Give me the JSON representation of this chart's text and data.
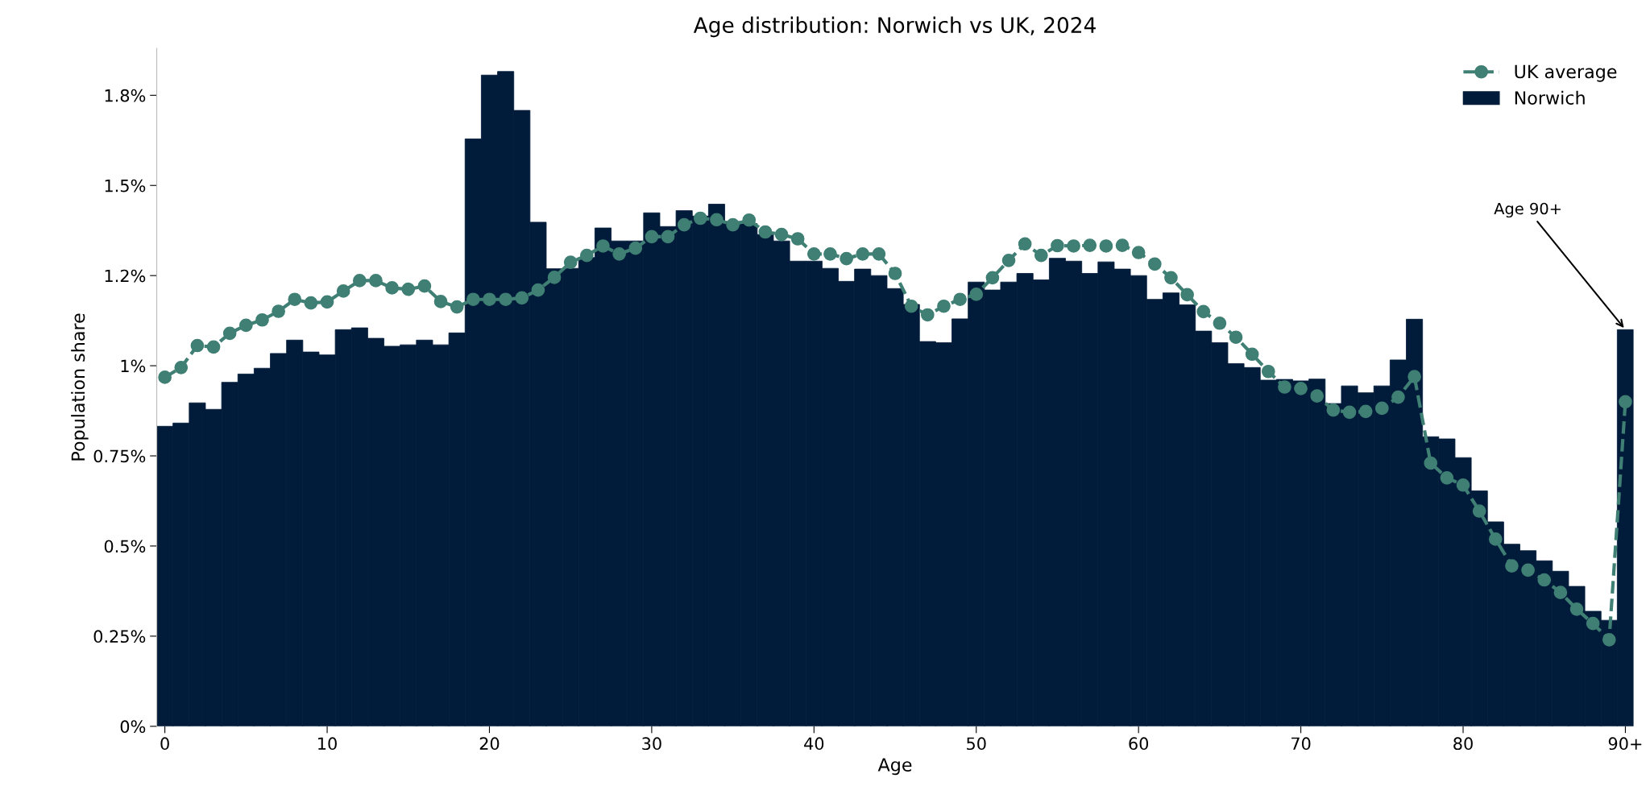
{
  "chart_data": {
    "type": "bar",
    "title": "Age distribution: Norwich vs UK, 2024",
    "xlabel": "Age",
    "ylabel": "Population share",
    "categories": [
      "0",
      null,
      null,
      null,
      null,
      null,
      null,
      null,
      null,
      null,
      "10",
      null,
      null,
      null,
      null,
      null,
      null,
      null,
      null,
      null,
      "20",
      null,
      null,
      null,
      null,
      null,
      null,
      null,
      null,
      null,
      "30",
      null,
      null,
      null,
      null,
      null,
      null,
      null,
      null,
      null,
      "40",
      null,
      null,
      null,
      null,
      null,
      null,
      null,
      null,
      null,
      "50",
      null,
      null,
      null,
      null,
      null,
      null,
      null,
      null,
      null,
      "60",
      null,
      null,
      null,
      null,
      null,
      null,
      null,
      null,
      null,
      "70",
      null,
      null,
      null,
      null,
      null,
      null,
      null,
      null,
      null,
      "80",
      null,
      null,
      null,
      null,
      null,
      null,
      null,
      null,
      null,
      "90+"
    ],
    "series": [
      {
        "name": "Norwich",
        "color": "#011c3a",
        "values": [
          0.832,
          0.841,
          0.897,
          0.879,
          0.954,
          0.977,
          0.993,
          1.034,
          1.071,
          1.038,
          1.03,
          1.1,
          1.105,
          1.076,
          1.054,
          1.058,
          1.071,
          1.058,
          1.091,
          1.629,
          1.806,
          1.816,
          1.708,
          1.398,
          1.269,
          1.27,
          1.3,
          1.382,
          1.346,
          1.346,
          1.424,
          1.386,
          1.43,
          1.415,
          1.448,
          1.4,
          1.394,
          1.364,
          1.346,
          1.29,
          1.29,
          1.27,
          1.234,
          1.268,
          1.25,
          1.214,
          1.17,
          1.067,
          1.064,
          1.13,
          1.232,
          1.21,
          1.232,
          1.256,
          1.238,
          1.298,
          1.29,
          1.256,
          1.288,
          1.268,
          1.25,
          1.184,
          1.202,
          1.169,
          1.096,
          1.064,
          1.006,
          0.995,
          0.96,
          0.962,
          0.958,
          0.963,
          0.895,
          0.944,
          0.925,
          0.944,
          1.016,
          1.129,
          0.803,
          0.797,
          0.745,
          0.653,
          0.567,
          0.505,
          0.487,
          0.459,
          0.43,
          0.388,
          0.319,
          0.294,
          1.1
        ]
      },
      {
        "name": "UK average",
        "type": "line",
        "color": "#3f7f74",
        "marker": "circle",
        "line_style": "dashed",
        "values": [
          0.968,
          0.995,
          1.056,
          1.052,
          1.09,
          1.112,
          1.127,
          1.151,
          1.184,
          1.174,
          1.177,
          1.207,
          1.236,
          1.236,
          1.216,
          1.212,
          1.221,
          1.178,
          1.163,
          1.184,
          1.184,
          1.184,
          1.188,
          1.21,
          1.245,
          1.287,
          1.306,
          1.332,
          1.31,
          1.326,
          1.358,
          1.358,
          1.391,
          1.409,
          1.405,
          1.391,
          1.404,
          1.371,
          1.364,
          1.352,
          1.31,
          1.31,
          1.297,
          1.31,
          1.31,
          1.256,
          1.165,
          1.141,
          1.165,
          1.184,
          1.198,
          1.244,
          1.292,
          1.338,
          1.306,
          1.333,
          1.332,
          1.334,
          1.332,
          1.334,
          1.314,
          1.282,
          1.244,
          1.197,
          1.15,
          1.118,
          1.079,
          1.032,
          0.984,
          0.941,
          0.937,
          0.916,
          0.877,
          0.871,
          0.873,
          0.882,
          0.913,
          0.97,
          0.73,
          0.689,
          0.669,
          0.597,
          0.519,
          0.445,
          0.433,
          0.406,
          0.371,
          0.325,
          0.285,
          0.24,
          0.9
        ]
      }
    ],
    "ylim": [
      0,
      1.88
    ],
    "yticks": [
      {
        "value": 0,
        "label": "0%"
      },
      {
        "value": 0.25,
        "label": "0.25%"
      },
      {
        "value": 0.5,
        "label": "0.5%"
      },
      {
        "value": 0.75,
        "label": "0.75%"
      },
      {
        "value": 1,
        "label": "1%"
      },
      {
        "value": 1.25,
        "label": "1.2%"
      },
      {
        "value": 1.5,
        "label": "1.5%"
      },
      {
        "value": 1.75,
        "label": "1.8%"
      }
    ],
    "annotations": [
      {
        "text": "Age 90+",
        "x": "90+",
        "y": 1.1
      }
    ],
    "legend": "top right",
    "grid": false
  }
}
